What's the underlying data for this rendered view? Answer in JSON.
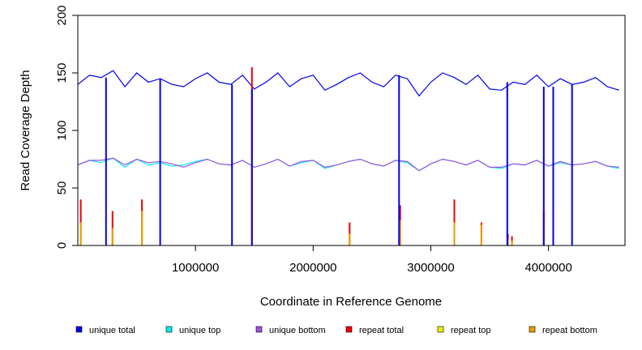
{
  "chart_data": {
    "type": "line",
    "title": "",
    "xlabel": "Coordinate in Reference Genome",
    "ylabel": "Read Coverage Depth",
    "xlim": [
      0,
      4650000
    ],
    "ylim": [
      0,
      200
    ],
    "x_ticks": [
      1000000,
      2000000,
      3000000,
      4000000
    ],
    "x_tick_labels": [
      "1000000",
      "2000000",
      "3000000",
      "4000000"
    ],
    "y_ticks": [
      0,
      50,
      100,
      150,
      200
    ],
    "y_tick_labels": [
      "0",
      "50",
      "100",
      "150",
      "200"
    ],
    "grid": false,
    "legend_position": "bottom",
    "series": [
      {
        "name": "unique total",
        "color": "#0000ee",
        "x": [
          0,
          100000,
          200000,
          300000,
          400000,
          500000,
          600000,
          700000,
          800000,
          900000,
          1000000,
          1100000,
          1200000,
          1300000,
          1400000,
          1500000,
          1600000,
          1700000,
          1800000,
          1900000,
          2000000,
          2100000,
          2200000,
          2300000,
          2400000,
          2500000,
          2600000,
          2700000,
          2800000,
          2900000,
          3000000,
          3100000,
          3200000,
          3300000,
          3400000,
          3500000,
          3600000,
          3700000,
          3800000,
          3900000,
          4000000,
          4100000,
          4200000,
          4300000,
          4400000,
          4500000,
          4600000
        ],
        "values": [
          140,
          148,
          146,
          152,
          138,
          150,
          142,
          145,
          140,
          138,
          145,
          150,
          142,
          140,
          148,
          136,
          142,
          150,
          138,
          145,
          148,
          135,
          140,
          146,
          150,
          142,
          138,
          148,
          145,
          130,
          142,
          150,
          146,
          140,
          148,
          136,
          135,
          142,
          140,
          148,
          138,
          145,
          140,
          142,
          146,
          138,
          135
        ]
      },
      {
        "name": "unique top",
        "color": "#00eeee",
        "x": [
          0,
          100000,
          200000,
          300000,
          400000,
          500000,
          600000,
          700000,
          800000,
          900000,
          1000000,
          1100000,
          1200000,
          1300000,
          1400000,
          1500000,
          1600000,
          1700000,
          1800000,
          1900000,
          2000000,
          2100000,
          2200000,
          2300000,
          2400000,
          2500000,
          2600000,
          2700000,
          2800000,
          2900000,
          3000000,
          3100000,
          3200000,
          3300000,
          3400000,
          3500000,
          3600000,
          3700000,
          3800000,
          3900000,
          4000000,
          4100000,
          4200000,
          4300000,
          4400000,
          4500000,
          4600000
        ],
        "values": [
          70,
          74,
          72,
          76,
          68,
          75,
          70,
          72,
          69,
          70,
          73,
          75,
          71,
          70,
          74,
          68,
          71,
          75,
          69,
          72,
          74,
          67,
          70,
          73,
          75,
          71,
          69,
          74,
          72,
          65,
          71,
          75,
          73,
          70,
          74,
          68,
          67,
          71,
          70,
          74,
          69,
          72,
          70,
          71,
          73,
          69,
          67
        ]
      },
      {
        "name": "unique bottom",
        "color": "#a050e0",
        "x": [
          0,
          100000,
          200000,
          300000,
          400000,
          500000,
          600000,
          700000,
          800000,
          900000,
          1000000,
          1100000,
          1200000,
          1300000,
          1400000,
          1500000,
          1600000,
          1700000,
          1800000,
          1900000,
          2000000,
          2100000,
          2200000,
          2300000,
          2400000,
          2500000,
          2600000,
          2700000,
          2800000,
          2900000,
          3000000,
          3100000,
          3200000,
          3300000,
          3400000,
          3500000,
          3600000,
          3700000,
          3800000,
          3900000,
          4000000,
          4100000,
          4200000,
          4300000,
          4400000,
          4500000,
          4600000
        ],
        "values": [
          70,
          74,
          74,
          76,
          70,
          75,
          72,
          73,
          71,
          68,
          72,
          75,
          71,
          70,
          74,
          68,
          71,
          75,
          69,
          73,
          74,
          68,
          70,
          73,
          75,
          71,
          69,
          74,
          73,
          65,
          71,
          75,
          73,
          70,
          74,
          68,
          68,
          71,
          70,
          74,
          69,
          73,
          70,
          71,
          73,
          69,
          68
        ]
      },
      {
        "name": "repeat total",
        "color": "#ee0000",
        "x": [
          25000,
          295000,
          545000,
          1480000,
          2310000,
          2740000,
          3200000,
          3430000,
          3655000,
          3690000,
          3960000
        ],
        "values": [
          40,
          30,
          40,
          155,
          20,
          35,
          40,
          20,
          10,
          8,
          30
        ]
      },
      {
        "name": "repeat top",
        "color": "#eeee00",
        "x": [
          25000,
          295000,
          545000,
          1480000,
          2310000,
          2740000,
          3200000,
          3430000,
          3655000,
          3690000,
          3960000
        ],
        "values": [
          20,
          15,
          20,
          78,
          10,
          18,
          20,
          10,
          5,
          4,
          15
        ]
      },
      {
        "name": "repeat bottom",
        "color": "#ee9a00",
        "x": [
          25000,
          295000,
          545000,
          1480000,
          2310000,
          2740000,
          3200000,
          3430000,
          3655000,
          3690000,
          3960000
        ],
        "values": [
          20,
          15,
          30,
          77,
          10,
          22,
          20,
          18,
          5,
          4,
          15
        ]
      }
    ],
    "dropouts_unique": {
      "x": [
        240000,
        700000,
        1310000,
        1480000,
        2730000,
        3650000,
        3960000,
        4040000,
        4200000
      ],
      "values": [
        0,
        0,
        0,
        0,
        0,
        0,
        0,
        0,
        0
      ]
    }
  }
}
